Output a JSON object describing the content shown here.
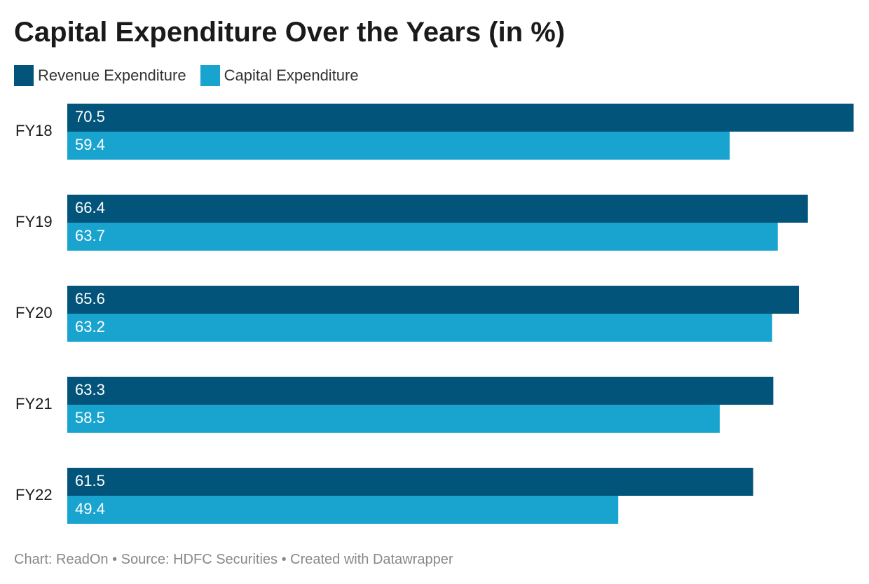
{
  "chart_data": {
    "type": "bar",
    "orientation": "horizontal",
    "title": "Capital Expenditure Over the Years (in %)",
    "categories": [
      "FY18",
      "FY19",
      "FY20",
      "FY21",
      "FY22"
    ],
    "series": [
      {
        "name": "Revenue Expenditure",
        "color": "#03547b",
        "values": [
          70.5,
          66.4,
          65.6,
          63.3,
          61.5
        ],
        "labels": [
          "70.5",
          "66.4",
          "65.6",
          "63.3",
          "61.5"
        ]
      },
      {
        "name": "Capital Expenditure",
        "color": "#19a4cf",
        "values": [
          59.4,
          63.7,
          63.2,
          58.5,
          49.4
        ],
        "labels": [
          "59.4",
          "63.7",
          "63.2",
          "58.5",
          "49.4"
        ]
      }
    ],
    "xlim": [
      0,
      70.5
    ],
    "grid": false,
    "legend_position": "top-left",
    "data_labels": "inside-start"
  },
  "footer": {
    "text": "Chart: ReadOn • Source: HDFC Securities • Created with Datawrapper"
  }
}
